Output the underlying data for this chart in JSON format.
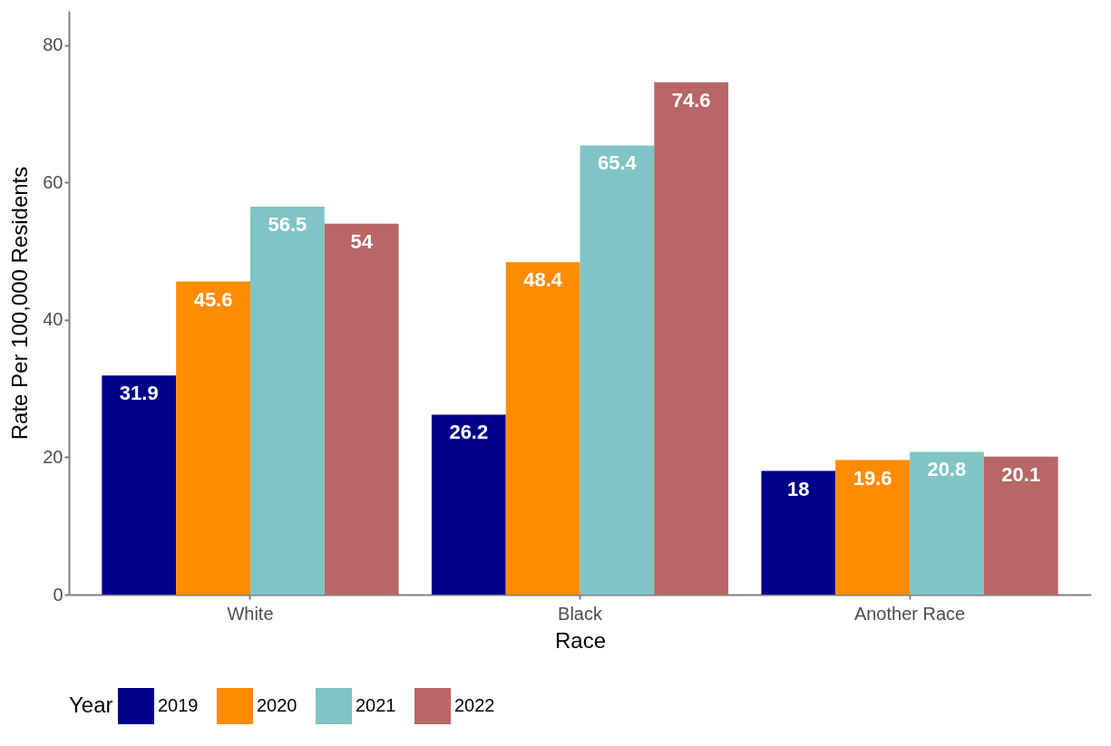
{
  "chart_data": {
    "type": "bar",
    "xlabel": "Race",
    "ylabel": "Rate Per 100,000 Residents",
    "legend_title": "Year",
    "categories": [
      "White",
      "Black",
      "Another Race"
    ],
    "series": [
      {
        "name": "2019",
        "color": "#00008b",
        "values": [
          31.9,
          26.2,
          18
        ]
      },
      {
        "name": "2020",
        "color": "#ff8c00",
        "values": [
          45.6,
          48.4,
          19.6
        ]
      },
      {
        "name": "2021",
        "color": "#7fc5c5",
        "values": [
          56.5,
          65.4,
          20.8
        ]
      },
      {
        "name": "2022",
        "color": "#b86666",
        "values": [
          54,
          74.6,
          20.1
        ]
      }
    ],
    "ylim": [
      0,
      85
    ],
    "yticks": [
      0,
      20,
      40,
      60,
      80
    ],
    "data_labels": true,
    "legend": "bottom"
  }
}
